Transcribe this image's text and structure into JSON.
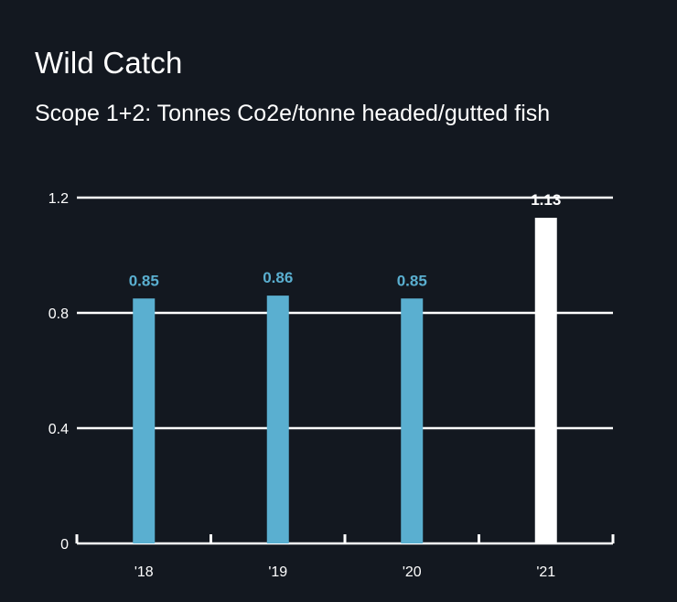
{
  "chart_data": {
    "type": "bar",
    "title": "Wild Catch",
    "subtitle": "Scope 1+2: Tonnes Co2e/tonne headed/gutted fish",
    "categories": [
      "'18",
      "'19",
      "'20",
      "'21"
    ],
    "values": [
      0.85,
      0.86,
      0.85,
      1.13
    ],
    "value_labels": [
      "0.85",
      "0.86",
      "0.85",
      "1.13"
    ],
    "yticks": [
      "0",
      "0.4",
      "0.8",
      "1.2"
    ],
    "ytick_values": [
      0,
      0.4,
      0.8,
      1.2
    ],
    "ylim": [
      0,
      1.2
    ],
    "grid": true,
    "bar_colors": [
      "#5aafd0",
      "#5aafd0",
      "#5aafd0",
      "#ffffff"
    ],
    "label_colors": [
      "#5aafd0",
      "#5aafd0",
      "#5aafd0",
      "#ffffff"
    ],
    "background": "#131820"
  }
}
